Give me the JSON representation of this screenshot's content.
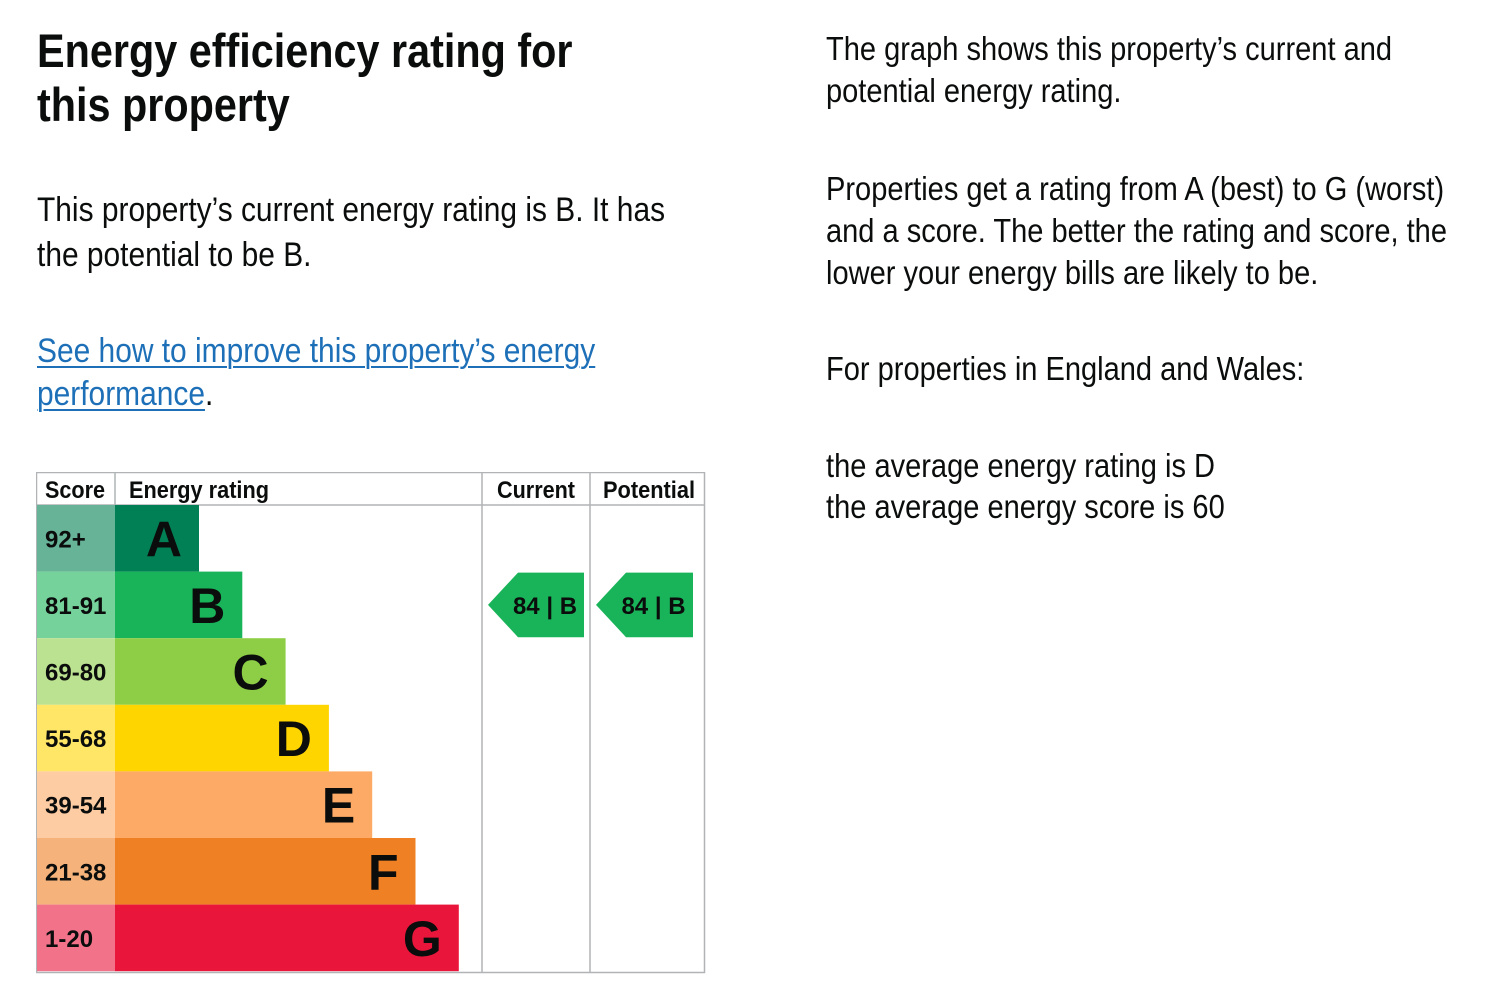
{
  "heading": "Energy efficiency rating for this property",
  "intro": "This property’s current energy rating is B. It has the potential to be B.",
  "improve_link": {
    "text": "See how to improve this property’s energy performance",
    "suffix": "."
  },
  "right": {
    "graph_desc": "The graph shows this property’s current and potential energy rating.",
    "rating_desc": "Properties get a rating from A (best) to G (worst) and a score. The better the rating and score, the lower your energy bills are likely to be.",
    "region": "For properties in England and Wales:",
    "average_rating": "the average energy rating is D",
    "average_score": "the average energy score is 60"
  },
  "chart_data": {
    "type": "table",
    "columns": [
      "Score",
      "Energy rating",
      "Current",
      "Potential"
    ],
    "bands": [
      {
        "score": "92+",
        "letter": "A",
        "color": "#008054",
        "score_bg": "#66b398"
      },
      {
        "score": "81-91",
        "letter": "B",
        "color": "#19b459",
        "score_bg": "#75d29b"
      },
      {
        "score": "69-80",
        "letter": "C",
        "color": "#8dce46",
        "score_bg": "#bbe290"
      },
      {
        "score": "55-68",
        "letter": "D",
        "color": "#ffd500",
        "score_bg": "#ffe666"
      },
      {
        "score": "39-54",
        "letter": "E",
        "color": "#fcaa65",
        "score_bg": "#fdcca3"
      },
      {
        "score": "21-38",
        "letter": "F",
        "color": "#ef8023",
        "score_bg": "#f5b37b"
      },
      {
        "score": "1-20",
        "letter": "G",
        "color": "#e9153b",
        "score_bg": "#f27389"
      }
    ],
    "current": {
      "score": 84,
      "band": "B",
      "label": "84 | B"
    },
    "potential": {
      "score": 84,
      "band": "B",
      "label": "84 | B"
    }
  }
}
